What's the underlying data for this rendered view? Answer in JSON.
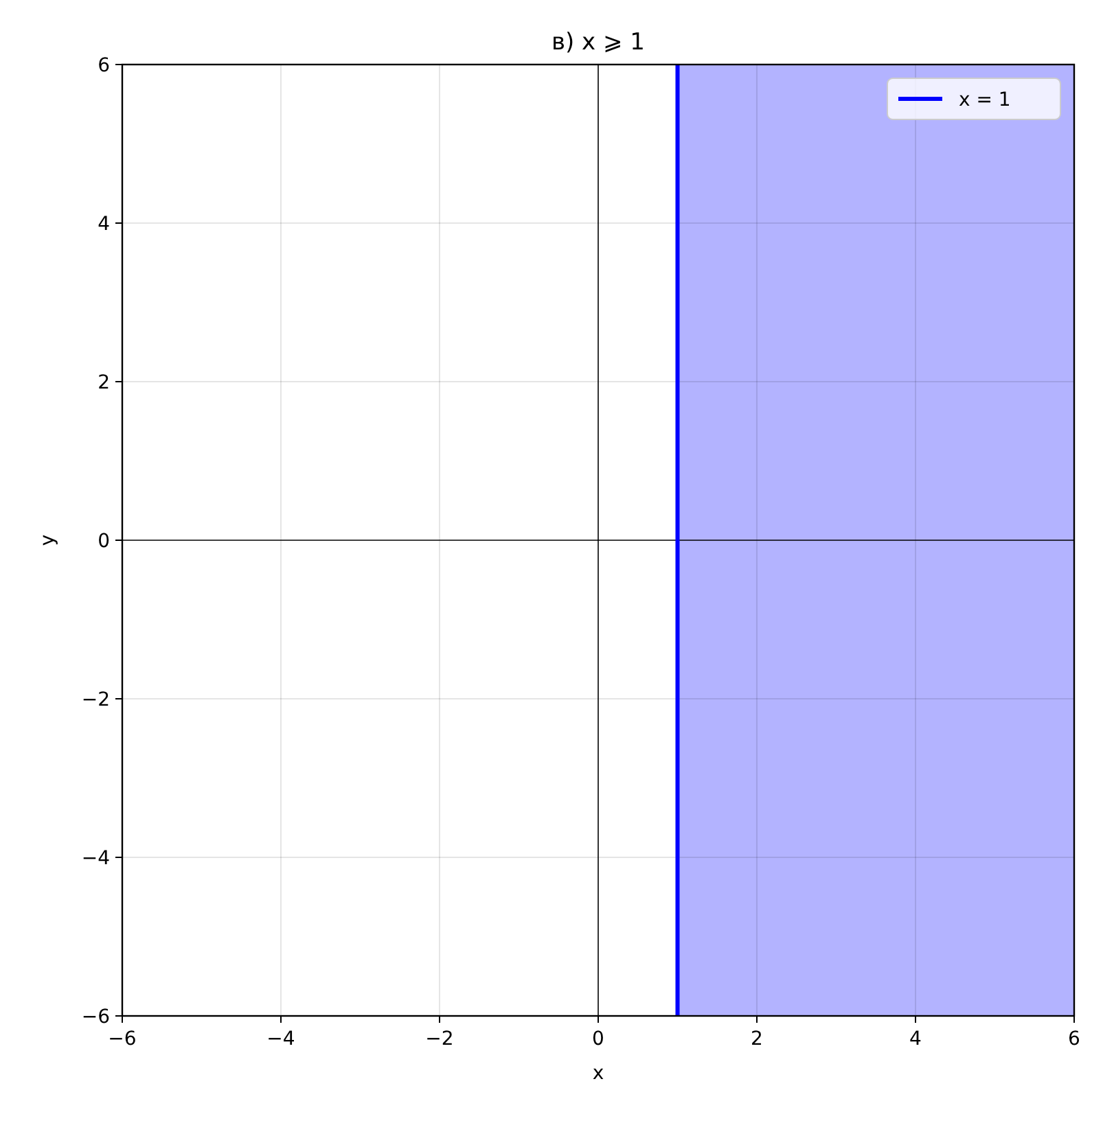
{
  "chart_data": {
    "type": "line",
    "title": "в) x ⩾ 1",
    "xlabel": "x",
    "ylabel": "y",
    "xlim": [
      -6,
      6
    ],
    "ylim": [
      -6,
      6
    ],
    "xticks": [
      {
        "value": -6,
        "label": "−6"
      },
      {
        "value": -4,
        "label": "−4"
      },
      {
        "value": -2,
        "label": "−2"
      },
      0,
      2,
      4,
      6
    ],
    "yticks": [
      {
        "value": -6,
        "label": "−6"
      },
      {
        "value": -4,
        "label": "−4"
      },
      {
        "value": -2,
        "label": "−2"
      },
      0,
      2,
      4,
      6
    ],
    "series": [
      {
        "name": "x = 1",
        "color": "#0000ff",
        "x": [
          1,
          1
        ],
        "values": [
          -6,
          6
        ]
      }
    ],
    "bands": [
      {
        "axis": "x",
        "from": 1,
        "to": 6,
        "color": "#b3b3ff"
      }
    ],
    "grid": true,
    "legend": "top right"
  }
}
